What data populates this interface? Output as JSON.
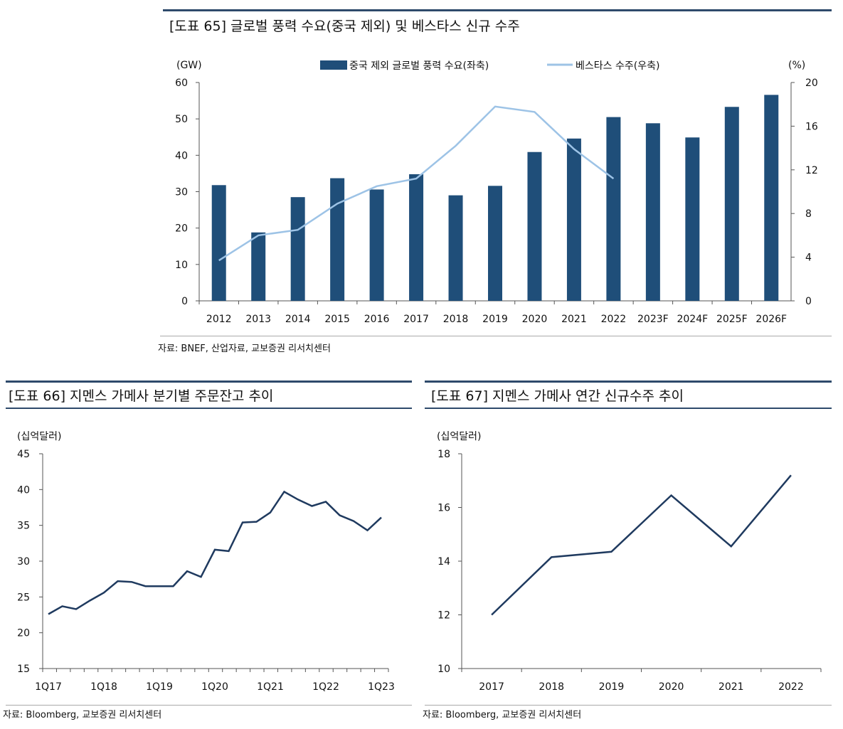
{
  "chart_data": [
    {
      "type": "bar+line",
      "title": "[도표 65] 글로벌 풍력 수요(중국 제외) 및 베스타스 신규 수주",
      "left_unit": "(GW)",
      "right_unit": "(%)",
      "categories": [
        "2012",
        "2013",
        "2014",
        "2015",
        "2016",
        "2017",
        "2018",
        "2019",
        "2020",
        "2021",
        "2022",
        "2023F",
        "2024F",
        "2025F",
        "2026F"
      ],
      "ylim_left": [
        0,
        60
      ],
      "yticks_left": [
        "0",
        "10",
        "20",
        "30",
        "40",
        "50",
        "60"
      ],
      "ylim_right": [
        0,
        20
      ],
      "yticks_right": [
        "0",
        "4",
        "8",
        "12",
        "16",
        "20"
      ],
      "series": [
        {
          "name": "중국 제외 글로벌 풍력 수요(좌축)",
          "type": "bar",
          "axis": "left",
          "color": "#1f4e79",
          "values": [
            31.8,
            18.8,
            28.5,
            33.7,
            30.6,
            34.8,
            29.0,
            31.6,
            40.9,
            44.6,
            50.5,
            48.8,
            44.9,
            53.3,
            56.6
          ]
        },
        {
          "name": "베스타스 수주(우축)",
          "type": "line",
          "axis": "right",
          "color": "#9dc3e6",
          "values": [
            3.7,
            6.0,
            6.5,
            8.9,
            10.5,
            11.2,
            14.2,
            17.8,
            17.3,
            13.9,
            11.2,
            null,
            null,
            null,
            null
          ]
        }
      ],
      "source": "자료: BNEF, 산업자료, 교보증권 리서치센터"
    },
    {
      "type": "line",
      "title": "[도표 66] 지멘스 가메사 분기별 주문잔고 추이",
      "unit": "(십억달러)",
      "ylim": [
        15,
        45
      ],
      "yticks": [
        "15",
        "20",
        "25",
        "30",
        "35",
        "40",
        "45"
      ],
      "x": [
        "1Q17",
        "2Q17",
        "3Q17",
        "4Q17",
        "1Q18",
        "2Q18",
        "3Q18",
        "4Q18",
        "1Q19",
        "2Q19",
        "3Q19",
        "4Q19",
        "1Q20",
        "2Q20",
        "3Q20",
        "4Q20",
        "1Q21",
        "2Q21",
        "3Q21",
        "4Q21",
        "1Q22",
        "2Q22",
        "3Q22",
        "4Q22",
        "1Q23"
      ],
      "x_tick_labels": [
        "1Q17",
        "1Q18",
        "1Q19",
        "1Q20",
        "1Q21",
        "1Q22",
        "1Q23"
      ],
      "series": [
        {
          "color": "#1f3a5f",
          "values": [
            22.6,
            23.7,
            23.3,
            24.5,
            25.6,
            27.2,
            27.1,
            26.5,
            26.5,
            26.5,
            28.6,
            27.8,
            31.6,
            31.4,
            35.4,
            35.5,
            36.8,
            39.7,
            38.6,
            37.7,
            38.3,
            36.4,
            35.6,
            34.3,
            36.1
          ]
        }
      ],
      "source": "자료: Bloomberg, 교보증권 리서치센터"
    },
    {
      "type": "line",
      "title": "[도표 67] 지멘스 가메사 연간 신규수주 추이",
      "unit": "(십억달러)",
      "ylim": [
        10,
        18
      ],
      "yticks": [
        "10",
        "12",
        "14",
        "16",
        "18"
      ],
      "x": [
        "2017",
        "2018",
        "2019",
        "2020",
        "2021",
        "2022"
      ],
      "series": [
        {
          "color": "#1f3a5f",
          "values": [
            12.0,
            14.15,
            14.35,
            16.45,
            14.55,
            17.2
          ]
        }
      ],
      "source": "자료: Bloomberg, 교보증권 리서치센터"
    }
  ]
}
